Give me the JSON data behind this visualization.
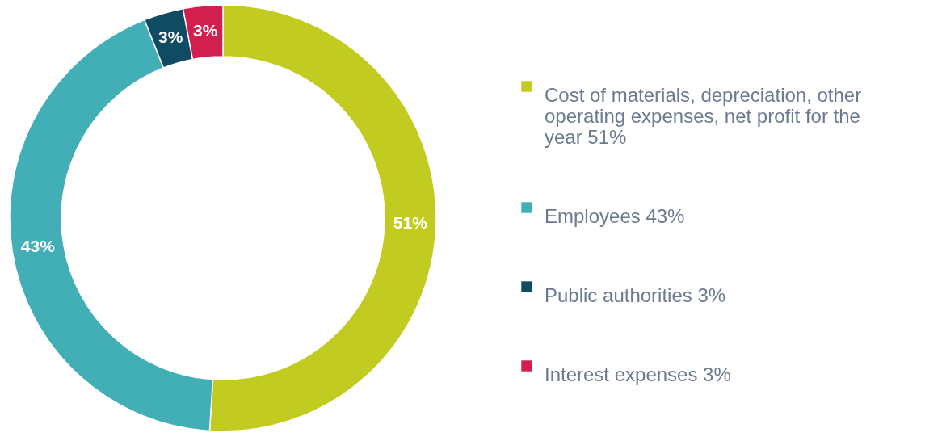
{
  "chart_data": {
    "type": "donut",
    "categories": [
      "Cost of materials, depreciation, other operating expenses, net profit for the year 51%",
      "Employees 43%",
      "Public authorities 3%",
      "Interest expenses 3%"
    ],
    "values": [
      51,
      43,
      3,
      3
    ],
    "colors": [
      "#c2cb20",
      "#42aeb5",
      "#0f4c63",
      "#d21f4d"
    ],
    "value_labels": [
      "51%",
      "43%",
      "3%",
      "3%"
    ],
    "legend": "right"
  }
}
